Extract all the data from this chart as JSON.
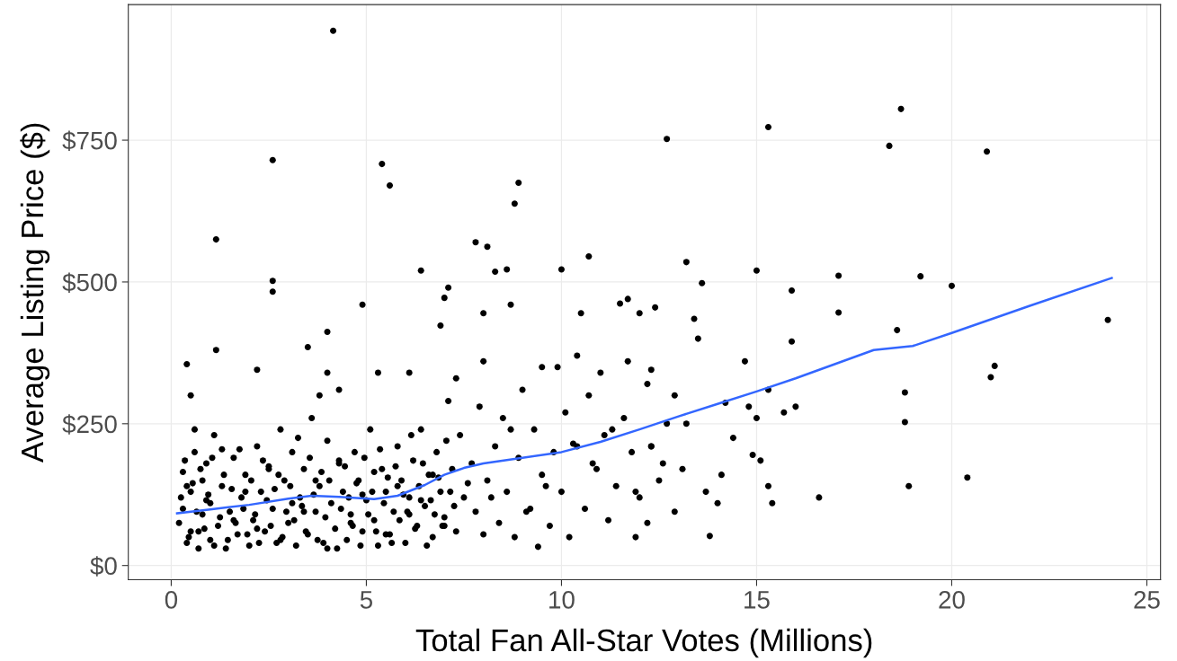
{
  "chart_data": {
    "type": "scatter",
    "xlabel": "Total Fan All-Star Votes (Millions)",
    "ylabel": "Average Listing Price ($)",
    "xlim": [
      -1.1,
      25.35
    ],
    "ylim": [
      -25,
      989
    ],
    "xticks": [
      0,
      5,
      10,
      15,
      20,
      25
    ],
    "yticks": [
      {
        "value": 0,
        "label": "$0"
      },
      {
        "value": 250,
        "label": "$250"
      },
      {
        "value": 500,
        "label": "$500"
      },
      {
        "value": 750,
        "label": "$750"
      }
    ],
    "grid": true,
    "marker": "circle",
    "series": [
      {
        "color": "#000000",
        "x": [
          0.25,
          0.35,
          0.45,
          0.55,
          0.65,
          0.75,
          0.85,
          0.95,
          1.05,
          1.25,
          1.35,
          1.45,
          1.55,
          1.65,
          1.75,
          1.85,
          1.95,
          2.05,
          2.15,
          2.25,
          2.35,
          2.45,
          2.55,
          2.65,
          2.75,
          2.85,
          2.95,
          3.05,
          3.15,
          3.25,
          3.35,
          3.45,
          3.55,
          3.65,
          3.75,
          3.85,
          3.95,
          4.05,
          4.25,
          4.35,
          4.45,
          4.55,
          4.65,
          4.75,
          4.85,
          4.95,
          5.05,
          5.15,
          5.25,
          5.35,
          5.45,
          5.55,
          5.65,
          5.75,
          5.85,
          5.95,
          6.05,
          6.15,
          6.25,
          6.35,
          6.45,
          6.55,
          6.65,
          6.75,
          6.85,
          6.95,
          7.05,
          7.15,
          7.25,
          0.4,
          0.7,
          0.9,
          1.1,
          1.3,
          1.6,
          1.9,
          2.2,
          2.5,
          2.8,
          3.1,
          3.4,
          3.7,
          4.0,
          4.3,
          4.6,
          4.9,
          5.2,
          5.5,
          5.8,
          6.1,
          6.4,
          6.7,
          7.0,
          7.6,
          8.2,
          8.7,
          9.1,
          9.6,
          10.3,
          10.8,
          11.3,
          11.9,
          12.6,
          4.15,
          1.15,
          1.15,
          2.6,
          2.6,
          2.6,
          5.4,
          5.6,
          8.9,
          8.8,
          7.8,
          8.1,
          6.4,
          8.3,
          8.6,
          10.0,
          10.7,
          12.7,
          15.3,
          18.4,
          18.7,
          20.9,
          13.2,
          13.6,
          15.0,
          17.1,
          19.2,
          20.0,
          24.0,
          15.9,
          17.1,
          18.6,
          21.1,
          21.0,
          18.8,
          18.8,
          20.4,
          18.9,
          16.6,
          15.4,
          13.8,
          11.9,
          9.4,
          4.9,
          4.0,
          7.1,
          7.0,
          6.9,
          11.7,
          11.5,
          12.4,
          10.5,
          13.4,
          8.0,
          8.7,
          12.0,
          0.4,
          0.5,
          2.2,
          3.5,
          3.8,
          4.0,
          4.3,
          5.3,
          6.1,
          7.3,
          8.0,
          9.5,
          9.9,
          10.4,
          11.0,
          11.7,
          12.3,
          13.5,
          14.7,
          15.9,
          15.3,
          14.8,
          14.2,
          15.0,
          15.7,
          16.0,
          14.4,
          13.2,
          12.3,
          13.1,
          13.7,
          15.3,
          12.9,
          12.2,
          14.0,
          14.1,
          15.1,
          14.9,
          0.2,
          0.3,
          0.3,
          0.4,
          0.5,
          0.5,
          0.6,
          0.6,
          0.7,
          0.8,
          0.8,
          0.9,
          1.0,
          1.0,
          1.1,
          1.2,
          1.3,
          1.4,
          1.5,
          1.6,
          1.7,
          1.8,
          1.9,
          2.0,
          2.1,
          2.2,
          2.3,
          2.4,
          2.5,
          2.6,
          2.7,
          2.8,
          2.9,
          3.0,
          3.1,
          3.2,
          3.3,
          3.4,
          3.5,
          3.6,
          3.7,
          3.8,
          3.9,
          4.0,
          4.1,
          4.2,
          4.3,
          4.4,
          4.5,
          4.6,
          4.7,
          4.8,
          4.9,
          5.0,
          5.1,
          5.2,
          5.3,
          5.4,
          5.5,
          5.6,
          5.7,
          5.8,
          5.9,
          6.0,
          6.1,
          6.2,
          6.3,
          6.4,
          6.5,
          6.6,
          6.7,
          6.8,
          6.9,
          7.0,
          7.1,
          7.2,
          7.3,
          7.4,
          7.5,
          7.7,
          7.8,
          7.9,
          8.0,
          8.1,
          8.3,
          8.4,
          8.5,
          8.6,
          8.8,
          8.9,
          9.0,
          9.2,
          9.3,
          9.5,
          9.7,
          9.8,
          10.0,
          10.1,
          10.2,
          10.4,
          10.6,
          10.7,
          10.9,
          11.1,
          11.2,
          11.4,
          11.6,
          11.8,
          12.0,
          12.2,
          12.3,
          12.5,
          12.7,
          12.9
        ],
        "values": [
          120,
          185,
          50,
          145,
          95,
          170,
          65,
          125,
          190,
          85,
          160,
          45,
          135,
          75,
          205,
          100,
          55,
          150,
          90,
          40,
          185,
          115,
          70,
          135,
          160,
          50,
          95,
          140,
          80,
          225,
          105,
          60,
          190,
          125,
          45,
          165,
          85,
          150,
          30,
          100,
          175,
          120,
          70,
          145,
          35,
          190,
          90,
          130,
          60,
          205,
          110,
          155,
          40,
          175,
          80,
          125,
          95,
          230,
          65,
          140,
          180,
          35,
          115,
          90,
          155,
          70,
          220,
          130,
          105,
          140,
          60,
          115,
          35,
          205,
          80,
          130,
          65,
          170,
          45,
          110,
          95,
          150,
          30,
          185,
          75,
          125,
          165,
          55,
          140,
          90,
          115,
          160,
          70,
          145,
          120,
          240,
          95,
          140,
          215,
          180,
          240,
          130,
          180,
          943,
          575,
          380,
          715,
          502,
          483,
          708,
          670,
          675,
          638,
          570,
          562,
          520,
          518,
          522,
          522,
          545,
          752,
          773,
          740,
          805,
          730,
          535,
          498,
          520,
          511,
          510,
          493,
          433,
          485,
          446,
          415,
          352,
          332,
          305,
          253,
          155,
          140,
          120,
          110,
          52,
          50,
          33,
          460,
          412,
          490,
          472,
          423,
          470,
          462,
          455,
          445,
          435,
          445,
          460,
          445,
          355,
          300,
          345,
          385,
          300,
          340,
          310,
          340,
          340,
          330,
          360,
          350,
          350,
          370,
          340,
          360,
          345,
          400,
          360,
          395,
          310,
          280,
          287,
          260,
          270,
          280,
          225,
          250,
          210,
          170,
          130,
          140,
          95,
          75,
          110,
          160,
          185,
          195,
          75,
          100,
          165,
          40,
          60,
          130,
          200,
          240,
          30,
          90,
          150,
          180,
          45,
          110,
          230,
          70,
          140,
          30,
          95,
          190,
          55,
          120,
          160,
          35,
          80,
          210,
          130,
          60,
          175,
          100,
          40,
          240,
          150,
          75,
          200,
          35,
          120,
          170,
          55,
          260,
          95,
          140,
          40,
          220,
          110,
          65,
          180,
          130,
          45,
          90,
          200,
          150,
          60,
          115,
          240,
          80,
          35,
          170,
          130,
          55,
          95,
          210,
          150,
          40,
          120,
          185,
          70,
          240,
          105,
          160,
          50,
          200,
          130,
          85,
          290,
          170,
          60,
          230,
          120,
          180,
          95,
          280,
          55,
          150,
          210,
          75,
          260,
          130,
          50,
          190,
          310,
          100,
          240,
          160,
          70,
          200,
          130,
          270,
          50,
          210,
          100,
          300,
          170,
          230,
          80,
          140,
          260,
          200,
          120,
          320,
          210,
          150,
          250,
          300
        ]
      },
      {
        "type": "line",
        "color": "#3366ff",
        "marker": "none",
        "x": [
          0.15,
          1,
          2,
          3,
          3.6,
          4.3,
          5.2,
          5.8,
          6.5,
          7,
          7.5,
          8,
          9,
          10,
          11,
          12,
          13,
          14,
          15,
          16,
          17,
          18,
          19,
          20,
          22,
          24.1
        ],
        "values": [
          92,
          99,
          107,
          118,
          123,
          121,
          117,
          123,
          142,
          160,
          172,
          180,
          190,
          200,
          218,
          240,
          263,
          285,
          307,
          330,
          355,
          380,
          387,
          410,
          458,
          507
        ]
      }
    ]
  }
}
